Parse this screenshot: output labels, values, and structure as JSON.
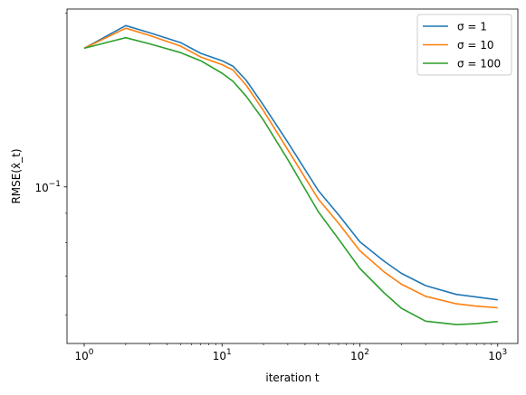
{
  "chart_data": {
    "type": "line",
    "xlabel": "iteration t",
    "ylabel": "RMSE(x̂_t)",
    "x_scale": "log",
    "y_scale": "log",
    "xlim": [
      0.75,
      1400
    ],
    "ylim": [
      0.0535,
      0.2035
    ],
    "x_tick_labels": [
      {
        "value": 1,
        "label_base": "10",
        "label_exp": "0"
      },
      {
        "value": 10,
        "label_base": "10",
        "label_exp": "1"
      },
      {
        "value": 100,
        "label_base": "10",
        "label_exp": "2"
      },
      {
        "value": 1000,
        "label_base": "10",
        "label_exp": "3"
      }
    ],
    "y_tick_labels": [
      {
        "value": 0.1,
        "label_base": "10",
        "label_exp": "−1"
      }
    ],
    "grid": false,
    "legend_position": "top-right",
    "x": [
      1,
      2,
      3,
      5,
      7,
      10,
      12,
      15,
      20,
      30,
      50,
      70,
      100,
      150,
      200,
      300,
      500,
      700,
      1000
    ],
    "series": [
      {
        "name": "σ = 1",
        "color": "#1f77b4",
        "values": [
          0.174,
          0.1905,
          0.185,
          0.178,
          0.1705,
          0.1655,
          0.162,
          0.153,
          0.1385,
          0.1195,
          0.0985,
          0.0895,
          0.0803,
          0.0743,
          0.0708,
          0.0674,
          0.0651,
          0.0644,
          0.0637
        ]
      },
      {
        "name": "σ = 10",
        "color": "#ff7f0e",
        "values": [
          0.174,
          0.1885,
          0.183,
          0.1755,
          0.168,
          0.163,
          0.1595,
          0.15,
          0.1355,
          0.116,
          0.0952,
          0.0865,
          0.0775,
          0.0712,
          0.0678,
          0.0646,
          0.0627,
          0.0621,
          0.0617
        ]
      },
      {
        "name": "σ = 100",
        "color": "#2ca02c",
        "values": [
          0.174,
          0.1815,
          0.177,
          0.171,
          0.1655,
          0.1575,
          0.1525,
          0.1435,
          0.1305,
          0.1115,
          0.0905,
          0.0812,
          0.0722,
          0.0655,
          0.0616,
          0.0585,
          0.0577,
          0.0579,
          0.0584
        ]
      }
    ]
  }
}
